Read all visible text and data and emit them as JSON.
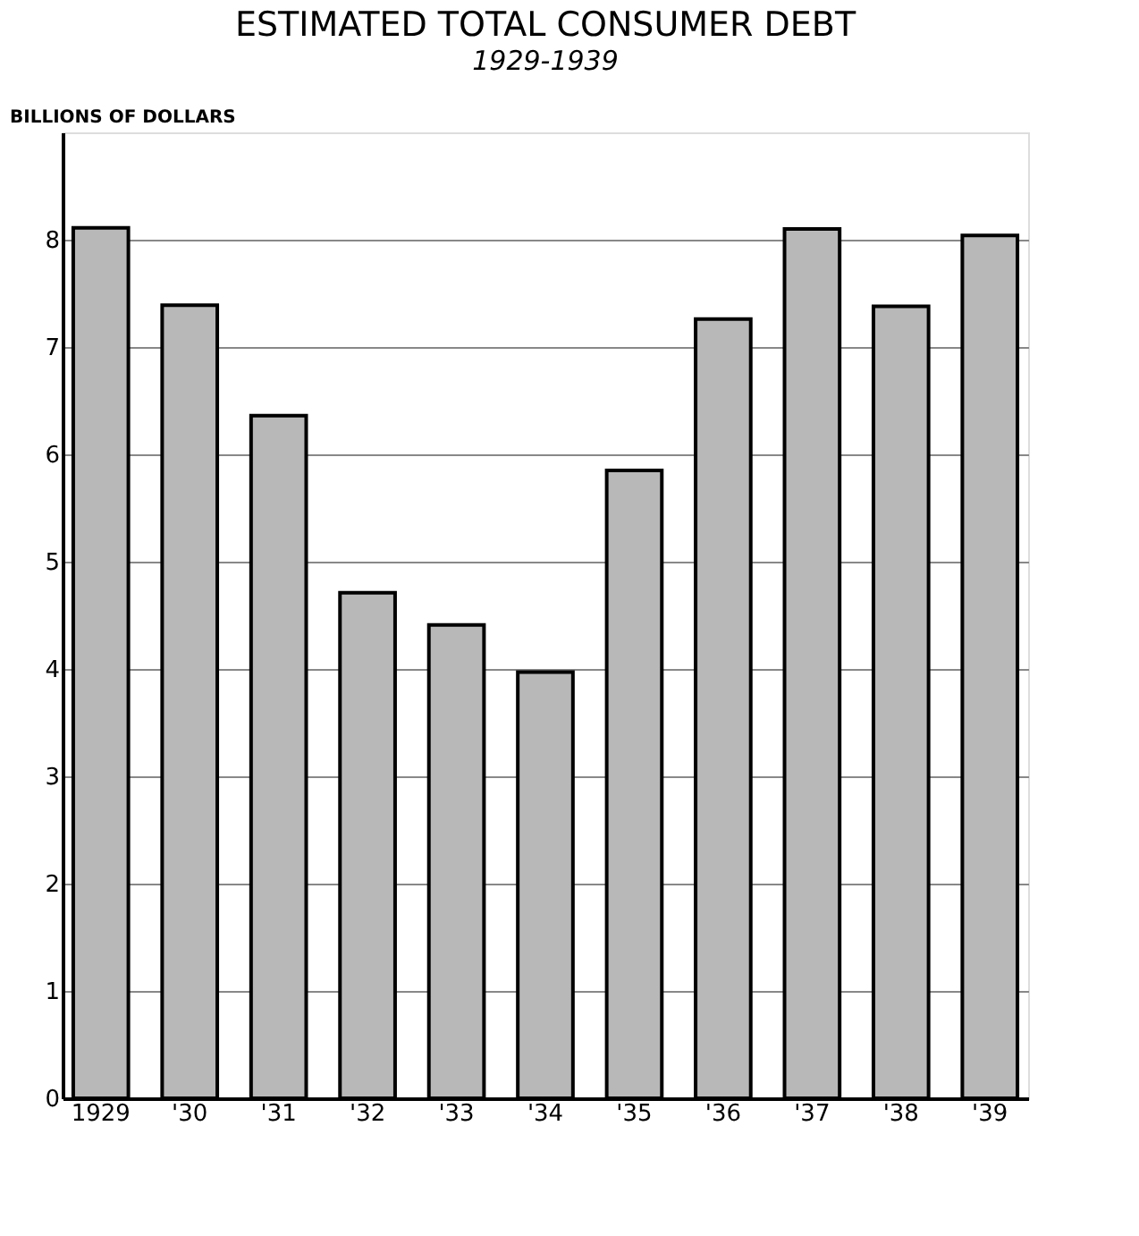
{
  "chart_data": {
    "type": "bar",
    "title": "ESTIMATED TOTAL CONSUMER DEBT",
    "subtitle": "1929-1939",
    "ylabel": "BILLIONS OF DOLLARS",
    "categories": [
      "1929",
      "'30",
      "'31",
      "'32",
      "'33",
      "'34",
      "'35",
      "'36",
      "'37",
      "'38",
      "'39"
    ],
    "values": [
      8.11,
      7.39,
      6.36,
      4.71,
      4.41,
      3.97,
      5.85,
      7.26,
      8.1,
      7.38,
      8.04
    ],
    "color": "#b8b8b8",
    "ylim": [
      0,
      9
    ],
    "yticks": [
      0,
      1,
      2,
      3,
      4,
      5,
      6,
      7,
      8
    ],
    "grid": "y"
  }
}
